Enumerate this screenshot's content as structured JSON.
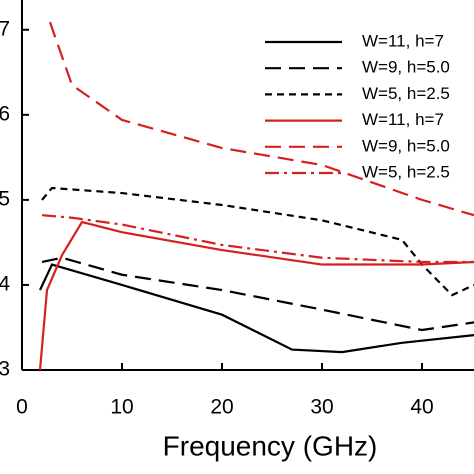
{
  "chart_data": {
    "type": "line",
    "x_label": "Frequency (GHz)",
    "xlim": [
      0,
      45.2
    ],
    "xticks": [
      0,
      10,
      20,
      30,
      40
    ],
    "ylim": [
      3,
      7.35
    ],
    "yticks": [
      3,
      4,
      5,
      6,
      7
    ],
    "legend": "upper right",
    "series": [
      {
        "name": "W=11, h=7",
        "color": "#000000",
        "dash": "solid",
        "x": [
          1.8,
          3,
          10,
          20,
          27,
          32,
          38,
          45.2
        ],
        "values": [
          3.94,
          4.24,
          4.0,
          3.65,
          3.24,
          3.21,
          3.32,
          3.41
        ]
      },
      {
        "name": "W=9, h=5.0",
        "color": "#000000",
        "dash": "long",
        "x": [
          2,
          4,
          10,
          20,
          30,
          40,
          45.2
        ],
        "values": [
          4.27,
          4.32,
          4.12,
          3.94,
          3.71,
          3.47,
          3.56
        ]
      },
      {
        "name": "W=5, h=2.5",
        "color": "#000000",
        "dash": "short",
        "x": [
          2,
          3,
          10,
          20,
          30,
          38,
          40,
          43,
          45.2
        ],
        "values": [
          5.0,
          5.14,
          5.08,
          4.94,
          4.76,
          4.53,
          4.24,
          3.88,
          4.0
        ]
      },
      {
        "name": "W=11, h=7",
        "color": "#d62020",
        "dash": "solid",
        "x": [
          1.8,
          2.5,
          4,
          6,
          10,
          20,
          30,
          40,
          45.2
        ],
        "values": [
          3.0,
          3.94,
          4.35,
          4.74,
          4.62,
          4.41,
          4.24,
          4.24,
          4.27
        ]
      },
      {
        "name": "W=9, h=5.0",
        "color": "#d62020",
        "dash": "long",
        "x": [
          2.8,
          5,
          10,
          20,
          30,
          40,
          45.2
        ],
        "values": [
          7.09,
          6.35,
          5.94,
          5.61,
          5.41,
          5.0,
          4.82
        ]
      },
      {
        "name": "W=5, h=2.5",
        "color": "#d62020",
        "dash": "dashdot",
        "x": [
          2,
          5,
          10,
          20,
          30,
          40,
          45.2
        ],
        "values": [
          4.82,
          4.79,
          4.71,
          4.47,
          4.32,
          4.27,
          4.27
        ]
      }
    ]
  }
}
